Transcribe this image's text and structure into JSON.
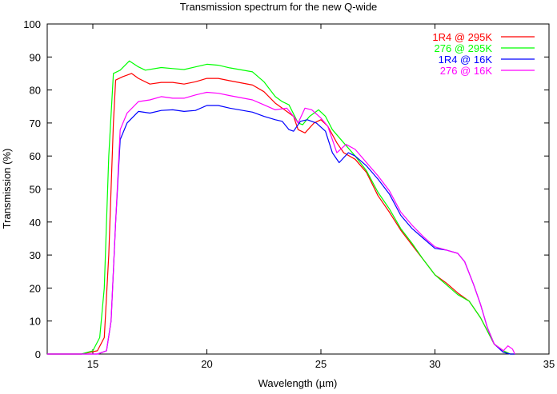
{
  "chart_data": {
    "type": "line",
    "title": "Transmission spectrum for the new Q-wide",
    "xlabel": "Wavelength (µm)",
    "ylabel": "Transmission (%)",
    "xlim": [
      13,
      35
    ],
    "ylim": [
      0,
      100
    ],
    "xticks": [
      15,
      20,
      25,
      30,
      35
    ],
    "yticks": [
      0,
      10,
      20,
      30,
      40,
      50,
      60,
      70,
      80,
      90,
      100
    ],
    "legend_position": "top-right",
    "grid": false,
    "series": [
      {
        "name": "1R4 @ 295K",
        "color": "#ff0000",
        "points": [
          [
            14.5,
            0
          ],
          [
            15.2,
            1
          ],
          [
            15.5,
            5
          ],
          [
            15.7,
            30
          ],
          [
            15.9,
            70
          ],
          [
            16.0,
            83
          ],
          [
            16.3,
            84
          ],
          [
            16.7,
            85
          ],
          [
            17.0,
            83.5
          ],
          [
            17.5,
            81.8
          ],
          [
            18,
            82.3
          ],
          [
            18.5,
            82.3
          ],
          [
            19,
            81.8
          ],
          [
            19.5,
            82.5
          ],
          [
            20,
            83.5
          ],
          [
            20.5,
            83.5
          ],
          [
            21,
            82.8
          ],
          [
            22,
            81.5
          ],
          [
            22.5,
            79.5
          ],
          [
            23,
            76
          ],
          [
            23.5,
            73.5
          ],
          [
            23.8,
            72
          ],
          [
            24.0,
            68
          ],
          [
            24.3,
            67
          ],
          [
            24.7,
            70
          ],
          [
            25,
            71
          ],
          [
            25.3,
            69
          ],
          [
            25.7,
            64
          ],
          [
            26,
            61
          ],
          [
            26.5,
            59
          ],
          [
            27,
            55
          ],
          [
            27.5,
            48
          ],
          [
            28,
            43
          ],
          [
            28.5,
            37.5
          ],
          [
            29,
            33
          ],
          [
            29.5,
            28.5
          ],
          [
            30,
            24
          ],
          [
            30.5,
            21.5
          ],
          [
            31,
            18.5
          ],
          [
            31.5,
            16
          ],
          [
            32,
            11
          ],
          [
            32.3,
            7
          ],
          [
            32.6,
            3
          ],
          [
            33,
            1
          ],
          [
            33.3,
            0
          ]
        ]
      },
      {
        "name": "276 @ 295K",
        "color": "#00ff00",
        "points": [
          [
            14.5,
            0
          ],
          [
            15,
            1
          ],
          [
            15.3,
            5
          ],
          [
            15.5,
            20
          ],
          [
            15.7,
            60
          ],
          [
            15.9,
            85
          ],
          [
            16.2,
            86
          ],
          [
            16.6,
            88.8
          ],
          [
            17,
            87
          ],
          [
            17.3,
            86
          ],
          [
            18,
            86.8
          ],
          [
            18.5,
            86.5
          ],
          [
            19,
            86.2
          ],
          [
            19.5,
            87
          ],
          [
            20,
            87.8
          ],
          [
            20.5,
            87.5
          ],
          [
            21,
            86.7
          ],
          [
            22,
            85.5
          ],
          [
            22.5,
            82.5
          ],
          [
            23,
            78
          ],
          [
            23.3,
            76.5
          ],
          [
            23.6,
            75.5
          ],
          [
            24,
            70
          ],
          [
            24.2,
            69.5
          ],
          [
            24.5,
            72
          ],
          [
            24.9,
            74
          ],
          [
            25.2,
            72
          ],
          [
            25.5,
            68
          ],
          [
            26,
            64
          ],
          [
            26.5,
            60
          ],
          [
            27,
            55.5
          ],
          [
            27.5,
            49
          ],
          [
            28,
            44
          ],
          [
            28.5,
            38
          ],
          [
            29,
            33.5
          ],
          [
            29.5,
            28.5
          ],
          [
            30,
            24
          ],
          [
            30.5,
            21
          ],
          [
            31,
            18
          ],
          [
            31.5,
            16
          ],
          [
            32,
            11
          ],
          [
            32.3,
            7
          ],
          [
            32.6,
            3
          ],
          [
            33,
            1
          ],
          [
            33.3,
            0
          ]
        ]
      },
      {
        "name": "1R4 @ 16K",
        "color": "#0000ff",
        "points": [
          [
            15.2,
            0
          ],
          [
            15.6,
            1
          ],
          [
            15.8,
            10
          ],
          [
            16,
            40
          ],
          [
            16.2,
            65
          ],
          [
            16.5,
            70
          ],
          [
            17,
            73.5
          ],
          [
            17.5,
            73
          ],
          [
            18,
            73.8
          ],
          [
            18.5,
            74
          ],
          [
            19,
            73.5
          ],
          [
            19.5,
            73.8
          ],
          [
            20,
            75.3
          ],
          [
            20.5,
            75.3
          ],
          [
            21,
            74.5
          ],
          [
            22,
            73.3
          ],
          [
            22.5,
            72
          ],
          [
            23,
            71
          ],
          [
            23.3,
            70.5
          ],
          [
            23.6,
            68
          ],
          [
            23.8,
            67.5
          ],
          [
            24.1,
            70.5
          ],
          [
            24.4,
            71
          ],
          [
            24.8,
            70
          ],
          [
            25.2,
            67.5
          ],
          [
            25.5,
            61
          ],
          [
            25.8,
            58
          ],
          [
            26.2,
            61
          ],
          [
            26.5,
            60
          ],
          [
            27,
            57
          ],
          [
            27.5,
            53
          ],
          [
            28,
            48.5
          ],
          [
            28.5,
            42
          ],
          [
            29,
            38
          ],
          [
            29.5,
            35
          ],
          [
            30,
            32
          ],
          [
            30.5,
            31.5
          ],
          [
            31,
            30.5
          ],
          [
            31.3,
            28
          ],
          [
            31.7,
            21
          ],
          [
            32,
            15
          ],
          [
            32.3,
            8
          ],
          [
            32.6,
            3
          ],
          [
            33,
            0.5
          ],
          [
            33.3,
            0
          ]
        ]
      },
      {
        "name": "276 @ 16K",
        "color": "#ff00ff",
        "points": [
          [
            15.2,
            0
          ],
          [
            15.6,
            1
          ],
          [
            15.8,
            10
          ],
          [
            16,
            40
          ],
          [
            16.2,
            68
          ],
          [
            16.5,
            73
          ],
          [
            17,
            76.5
          ],
          [
            17.5,
            77
          ],
          [
            18,
            78
          ],
          [
            18.5,
            77.5
          ],
          [
            19,
            77.5
          ],
          [
            19.5,
            78.5
          ],
          [
            20,
            79.3
          ],
          [
            20.5,
            79
          ],
          [
            21,
            78.3
          ],
          [
            22,
            77
          ],
          [
            22.5,
            75.5
          ],
          [
            23,
            74
          ],
          [
            23.5,
            74.5
          ],
          [
            23.8,
            72
          ],
          [
            24.0,
            70
          ],
          [
            24.3,
            74.5
          ],
          [
            24.6,
            74
          ],
          [
            25,
            71.5
          ],
          [
            25.3,
            69
          ],
          [
            25.7,
            61
          ],
          [
            26.1,
            63.5
          ],
          [
            26.5,
            62
          ],
          [
            27,
            58
          ],
          [
            27.5,
            54
          ],
          [
            28,
            49.5
          ],
          [
            28.5,
            43
          ],
          [
            29,
            39
          ],
          [
            29.5,
            35.5
          ],
          [
            30,
            32.5
          ],
          [
            30.5,
            31.5
          ],
          [
            31,
            30.5
          ],
          [
            31.3,
            28
          ],
          [
            31.7,
            21
          ],
          [
            32,
            15
          ],
          [
            32.3,
            8
          ],
          [
            32.6,
            3
          ],
          [
            33,
            1
          ],
          [
            33.2,
            2.5
          ],
          [
            33.4,
            1.5
          ]
        ]
      }
    ]
  }
}
